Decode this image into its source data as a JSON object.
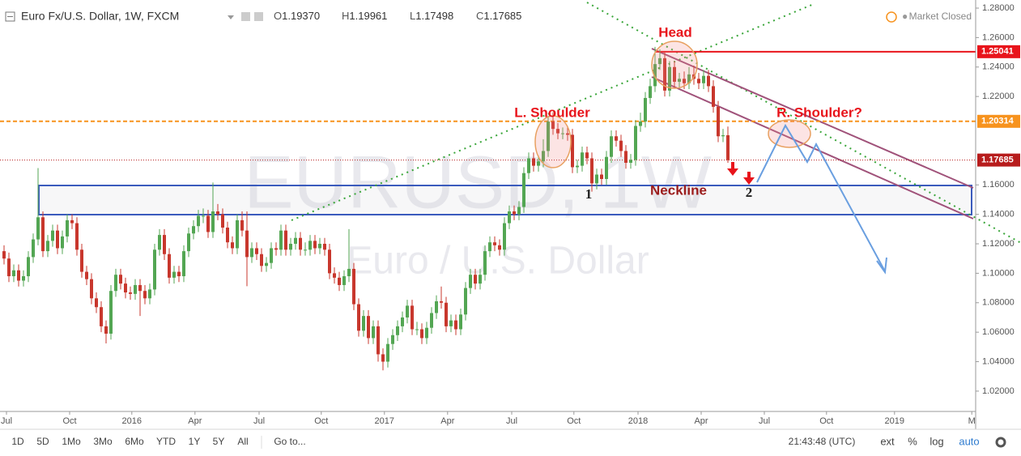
{
  "header": {
    "symbol": "Euro Fx/U.S. Dollar, 1W, FXCM",
    "ohlc": [
      {
        "key": "O",
        "value": "1.19370"
      },
      {
        "key": "H",
        "value": "1.19961"
      },
      {
        "key": "L",
        "value": "1.17498"
      },
      {
        "key": "C",
        "value": "1.17685"
      }
    ],
    "status": "Market Closed"
  },
  "chart_data": {
    "type": "candlestick",
    "open": [
      1.115,
      1.11,
      1.098,
      1.102,
      1.095,
      1.098,
      1.111,
      1.123,
      1.138,
      1.115,
      1.122,
      1.129,
      1.117,
      1.125,
      1.136,
      1.134,
      1.116,
      1.101,
      1.096,
      1.083,
      1.077,
      1.064,
      1.059,
      1.088,
      1.099,
      1.093,
      1.087,
      1.086,
      1.092,
      1.088,
      1.083,
      1.089,
      1.116,
      1.126,
      1.113,
      1.097,
      1.101,
      1.098,
      1.115,
      1.127,
      1.132,
      1.139,
      1.139,
      1.128,
      1.142,
      1.14,
      1.131,
      1.121,
      1.117,
      1.136,
      1.129,
      1.111,
      1.117,
      1.113,
      1.105,
      1.107,
      1.117,
      1.116,
      1.129,
      1.116,
      1.12,
      1.124,
      1.116,
      1.116,
      1.122,
      1.117,
      1.12,
      1.116,
      1.1,
      1.097,
      1.092,
      1.098,
      1.103,
      1.079,
      1.061,
      1.071,
      1.056,
      1.064,
      1.045,
      1.04,
      1.052,
      1.058,
      1.064,
      1.07,
      1.078,
      1.062,
      1.062,
      1.056,
      1.063,
      1.073,
      1.081,
      1.08,
      1.064,
      1.068,
      1.062,
      1.072,
      1.09,
      1.099,
      1.093,
      1.099,
      1.115,
      1.121,
      1.119,
      1.116,
      1.134,
      1.142,
      1.14,
      1.145,
      1.168,
      1.178,
      1.173,
      1.176,
      1.183,
      1.203,
      1.198,
      1.195,
      1.195,
      1.194,
      1.172,
      1.173,
      1.182,
      1.178,
      1.161,
      1.167,
      1.164,
      1.179,
      1.193,
      1.19,
      1.183,
      1.175,
      1.177,
      1.2,
      1.203,
      1.219,
      1.227,
      1.242,
      1.246,
      1.224,
      1.24,
      1.23,
      1.232,
      1.229,
      1.235,
      1.232,
      1.229,
      1.234,
      1.227,
      1.213,
      1.193,
      1.1937
    ],
    "high": [
      1.119,
      1.114,
      1.106,
      1.106,
      1.102,
      1.115,
      1.127,
      1.1714,
      1.142,
      1.126,
      1.133,
      1.133,
      1.129,
      1.14,
      1.14,
      1.138,
      1.12,
      1.105,
      1.1,
      1.087,
      1.081,
      1.068,
      1.092,
      1.103,
      1.103,
      1.097,
      1.091,
      1.096,
      1.096,
      1.092,
      1.093,
      1.12,
      1.13,
      1.13,
      1.117,
      1.105,
      1.105,
      1.119,
      1.131,
      1.136,
      1.143,
      1.144,
      1.143,
      1.1616,
      1.147,
      1.144,
      1.135,
      1.125,
      1.14,
      1.142,
      1.142,
      1.121,
      1.121,
      1.117,
      1.111,
      1.121,
      1.121,
      1.133,
      1.133,
      1.124,
      1.128,
      1.128,
      1.121,
      1.126,
      1.126,
      1.124,
      1.124,
      1.12,
      1.104,
      1.101,
      1.102,
      1.13,
      1.107,
      1.083,
      1.075,
      1.075,
      1.068,
      1.068,
      1.049,
      1.056,
      1.062,
      1.068,
      1.074,
      1.082,
      1.082,
      1.067,
      1.066,
      1.067,
      1.077,
      1.085,
      1.091,
      1.084,
      1.072,
      1.072,
      1.076,
      1.094,
      1.103,
      1.103,
      1.103,
      1.119,
      1.125,
      1.125,
      1.123,
      1.138,
      1.146,
      1.146,
      1.149,
      1.172,
      1.182,
      1.182,
      1.18,
      1.191,
      1.207,
      1.2092,
      1.202,
      1.199,
      1.2,
      1.198,
      1.177,
      1.186,
      1.186,
      1.182,
      1.171,
      1.171,
      1.183,
      1.197,
      1.197,
      1.194,
      1.187,
      1.181,
      1.204,
      1.209,
      1.223,
      1.232,
      1.2537,
      1.252,
      1.25,
      1.244,
      1.244,
      1.236,
      1.237,
      1.24,
      1.241,
      1.236,
      1.238,
      1.238,
      1.231,
      1.217,
      1.198,
      1.19961
    ],
    "low": [
      1.106,
      1.094,
      1.094,
      1.091,
      1.091,
      1.094,
      1.107,
      1.119,
      1.111,
      1.111,
      1.118,
      1.113,
      1.113,
      1.121,
      1.13,
      1.112,
      1.097,
      1.092,
      1.079,
      1.073,
      1.06,
      1.0524,
      1.055,
      1.084,
      1.089,
      1.083,
      1.082,
      1.082,
      1.071,
      1.079,
      1.079,
      1.085,
      1.112,
      1.109,
      1.093,
      1.093,
      1.094,
      1.094,
      1.111,
      1.123,
      1.128,
      1.134,
      1.124,
      1.124,
      1.136,
      1.127,
      1.117,
      1.113,
      1.113,
      1.125,
      1.0912,
      1.107,
      1.109,
      1.101,
      1.101,
      1.103,
      1.112,
      1.112,
      1.112,
      1.112,
      1.116,
      1.112,
      1.112,
      1.112,
      1.113,
      1.113,
      1.112,
      1.096,
      1.093,
      1.088,
      1.088,
      1.094,
      1.075,
      1.057,
      1.057,
      1.052,
      1.052,
      1.04,
      1.0341,
      1.036,
      1.048,
      1.054,
      1.06,
      1.066,
      1.058,
      1.058,
      1.052,
      1.052,
      1.059,
      1.069,
      1.076,
      1.06,
      1.06,
      1.058,
      1.058,
      1.068,
      1.086,
      1.089,
      1.089,
      1.095,
      1.111,
      1.115,
      1.112,
      1.112,
      1.13,
      1.136,
      1.136,
      1.141,
      1.164,
      1.169,
      1.169,
      1.172,
      1.179,
      1.194,
      1.191,
      1.191,
      1.19,
      1.168,
      1.168,
      1.169,
      1.174,
      1.1554,
      1.157,
      1.16,
      1.16,
      1.175,
      1.186,
      1.179,
      1.171,
      1.171,
      1.173,
      1.196,
      1.199,
      1.215,
      1.223,
      1.238,
      1.22,
      1.22,
      1.226,
      1.226,
      1.225,
      1.225,
      1.228,
      1.225,
      1.225,
      1.223,
      1.209,
      1.189,
      1.189,
      1.17498
    ],
    "close": [
      1.11,
      1.098,
      1.102,
      1.095,
      1.098,
      1.111,
      1.123,
      1.138,
      1.115,
      1.122,
      1.129,
      1.117,
      1.125,
      1.136,
      1.134,
      1.116,
      1.101,
      1.096,
      1.083,
      1.077,
      1.064,
      1.059,
      1.088,
      1.099,
      1.093,
      1.087,
      1.086,
      1.092,
      1.088,
      1.083,
      1.089,
      1.116,
      1.126,
      1.113,
      1.097,
      1.101,
      1.098,
      1.115,
      1.127,
      1.132,
      1.139,
      1.139,
      1.128,
      1.142,
      1.14,
      1.131,
      1.121,
      1.117,
      1.136,
      1.129,
      1.111,
      1.117,
      1.113,
      1.105,
      1.107,
      1.117,
      1.116,
      1.129,
      1.116,
      1.12,
      1.124,
      1.116,
      1.116,
      1.122,
      1.117,
      1.12,
      1.116,
      1.1,
      1.097,
      1.092,
      1.098,
      1.103,
      1.079,
      1.061,
      1.071,
      1.056,
      1.064,
      1.045,
      1.04,
      1.052,
      1.058,
      1.064,
      1.07,
      1.078,
      1.062,
      1.062,
      1.056,
      1.063,
      1.073,
      1.081,
      1.08,
      1.064,
      1.068,
      1.062,
      1.072,
      1.09,
      1.099,
      1.093,
      1.099,
      1.115,
      1.121,
      1.119,
      1.116,
      1.134,
      1.142,
      1.14,
      1.145,
      1.168,
      1.178,
      1.173,
      1.176,
      1.183,
      1.203,
      1.198,
      1.195,
      1.195,
      1.194,
      1.172,
      1.173,
      1.182,
      1.178,
      1.161,
      1.167,
      1.164,
      1.179,
      1.193,
      1.19,
      1.183,
      1.175,
      1.177,
      1.2,
      1.203,
      1.219,
      1.227,
      1.242,
      1.246,
      1.224,
      1.24,
      1.23,
      1.232,
      1.229,
      1.235,
      1.232,
      1.229,
      1.234,
      1.227,
      1.213,
      1.193,
      1.1937,
      1.17685
    ],
    "up_color": "#53a653",
    "down_color": "#c8372d",
    "xlim": [
      0,
      200
    ],
    "xticks": [
      {
        "value": 0.5,
        "label": "Jul"
      },
      {
        "value": 13.5,
        "label": "Oct"
      },
      {
        "value": 26.3,
        "label": "2016"
      },
      {
        "value": 39.3,
        "label": "Apr"
      },
      {
        "value": 52.5,
        "label": "Jul"
      },
      {
        "value": 65.3,
        "label": "Oct"
      },
      {
        "value": 78.3,
        "label": "2017"
      },
      {
        "value": 91.3,
        "label": "Apr"
      },
      {
        "value": 104.5,
        "label": "Jul"
      },
      {
        "value": 117.3,
        "label": "Oct"
      },
      {
        "value": 130.5,
        "label": "2018"
      },
      {
        "value": 143.5,
        "label": "Apr"
      },
      {
        "value": 156.5,
        "label": "Jul"
      },
      {
        "value": 169.3,
        "label": "Oct"
      },
      {
        "value": 183.3,
        "label": "2019"
      },
      {
        "value": 199.2,
        "label": "M"
      }
    ],
    "ylim": [
      1.0062,
      1.2855
    ],
    "yticks": [
      {
        "value": 1.28,
        "label": "1.28000"
      },
      {
        "value": 1.26,
        "label": "1.26000"
      },
      {
        "value": 1.24,
        "label": "1.24000"
      },
      {
        "value": 1.22,
        "label": "1.22000"
      },
      {
        "value": 1.16,
        "label": "1.16000"
      },
      {
        "value": 1.14,
        "label": "1.14000"
      },
      {
        "value": 1.12,
        "label": "1.12000"
      },
      {
        "value": 1.1,
        "label": "1.10000"
      },
      {
        "value": 1.08,
        "label": "1.08000"
      },
      {
        "value": 1.06,
        "label": "1.06000"
      },
      {
        "value": 1.04,
        "label": "1.04000"
      },
      {
        "value": 1.02,
        "label": "1.02000"
      }
    ],
    "grid": false,
    "levels": [
      {
        "value": 1.25041,
        "color": "#e8141b",
        "dash": "solid"
      },
      {
        "value": 1.20314,
        "color": "#f7931e",
        "dash": "dashed"
      },
      {
        "value": 1.17685,
        "color": "#b71c1c",
        "dash": "dotted"
      }
    ],
    "watermark": [
      "EURUSD, 1W",
      "Euro / U.S. Dollar"
    ],
    "annotations": {
      "head": "Head",
      "left_shoulder": "L. Shoulder",
      "right_shoulder": "R. Shoulder?",
      "neckline": "Neckline",
      "point1": "1",
      "point2": "2"
    }
  },
  "toolbar": {
    "ranges": [
      "1D",
      "5D",
      "1Mo",
      "3Mo",
      "6Mo",
      "YTD",
      "1Y",
      "5Y",
      "All"
    ],
    "goto": "Go to...",
    "time": "21:43:48 (UTC)",
    "options": [
      "ext",
      "%",
      "log",
      "auto"
    ]
  }
}
